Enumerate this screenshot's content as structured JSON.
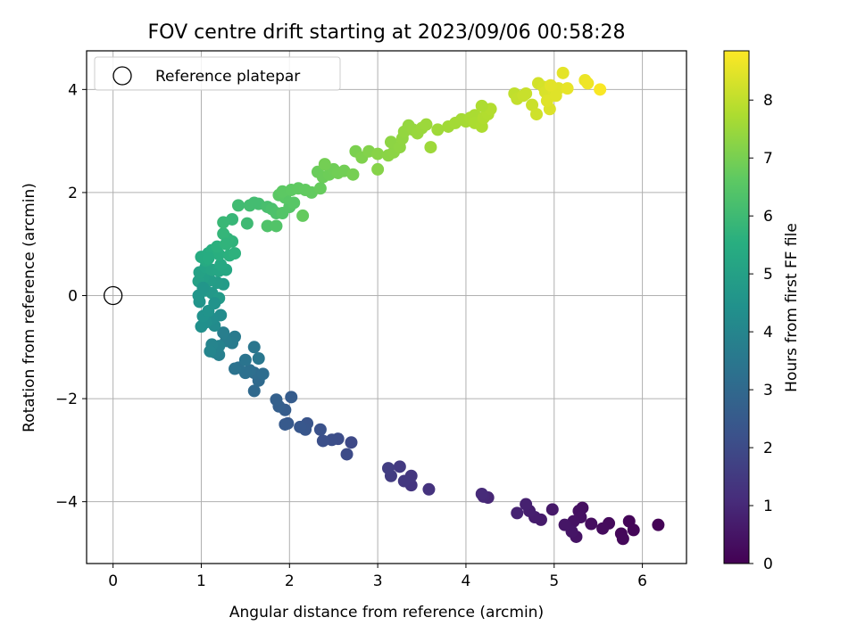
{
  "chart_data": {
    "type": "scatter",
    "title": "FOV centre drift starting at 2023/09/06 00:58:28",
    "xlabel": "Angular distance from reference (arcmin)",
    "ylabel": "Rotation from reference (arcmin)",
    "xlim": [
      -0.3,
      6.5
    ],
    "ylim": [
      -5.2,
      4.75
    ],
    "xticks": [
      0,
      1,
      2,
      3,
      4,
      5,
      6
    ],
    "xtick_labels": [
      "0",
      "1",
      "2",
      "3",
      "4",
      "5",
      "6"
    ],
    "yticks": [
      -4,
      -2,
      0,
      2,
      4
    ],
    "ytick_labels": [
      "−4",
      "−2",
      "0",
      "2",
      "4"
    ],
    "grid": true,
    "colormap": "viridis",
    "colorbar": {
      "label": "Hours from first FF file",
      "range": [
        0,
        8.85
      ],
      "ticks": [
        0,
        1,
        2,
        3,
        4,
        5,
        6,
        7,
        8
      ],
      "tick_labels": [
        "0",
        "1",
        "2",
        "3",
        "4",
        "5",
        "6",
        "7",
        "8"
      ]
    },
    "legend": {
      "location": "upper-left",
      "label": "Reference platepar",
      "marker": "open-circle"
    },
    "reference_point": {
      "x": 0,
      "y": 0
    },
    "points": [
      [
        6.18,
        -4.45,
        0.05
      ],
      [
        5.85,
        -4.38,
        0.1
      ],
      [
        5.9,
        -4.55,
        0.12
      ],
      [
        5.76,
        -4.62,
        0.15
      ],
      [
        5.78,
        -4.72,
        0.18
      ],
      [
        5.62,
        -4.42,
        0.22
      ],
      [
        5.55,
        -4.52,
        0.25
      ],
      [
        5.42,
        -4.43,
        0.3
      ],
      [
        5.32,
        -4.12,
        0.35
      ],
      [
        5.28,
        -4.18,
        0.38
      ],
      [
        5.3,
        -4.3,
        0.4
      ],
      [
        5.22,
        -4.38,
        0.42
      ],
      [
        5.25,
        -4.68,
        0.45
      ],
      [
        5.2,
        -4.58,
        0.5
      ],
      [
        5.12,
        -4.45,
        0.52
      ],
      [
        4.98,
        -4.15,
        0.6
      ],
      [
        4.85,
        -4.35,
        0.65
      ],
      [
        4.78,
        -4.3,
        0.7
      ],
      [
        4.72,
        -4.18,
        0.75
      ],
      [
        4.68,
        -4.05,
        0.8
      ],
      [
        4.58,
        -4.22,
        0.85
      ],
      [
        4.25,
        -3.92,
        0.95
      ],
      [
        4.2,
        -3.9,
        1.0
      ],
      [
        4.18,
        -3.85,
        1.05
      ],
      [
        3.58,
        -3.76,
        1.3
      ],
      [
        3.38,
        -3.68,
        1.35
      ],
      [
        3.38,
        -3.5,
        1.4
      ],
      [
        3.3,
        -3.6,
        1.45
      ],
      [
        3.25,
        -3.32,
        1.5
      ],
      [
        3.15,
        -3.5,
        1.55
      ],
      [
        3.12,
        -3.35,
        1.6
      ],
      [
        2.7,
        -2.85,
        1.95
      ],
      [
        2.65,
        -3.08,
        2.0
      ],
      [
        2.55,
        -2.78,
        2.05
      ],
      [
        2.48,
        -2.8,
        2.1
      ],
      [
        2.38,
        -2.82,
        2.15
      ],
      [
        2.35,
        -2.6,
        2.2
      ],
      [
        2.2,
        -2.48,
        2.3
      ],
      [
        2.18,
        -2.6,
        2.35
      ],
      [
        2.12,
        -2.55,
        2.4
      ],
      [
        1.98,
        -2.48,
        2.45
      ],
      [
        1.95,
        -2.5,
        2.5
      ],
      [
        2.02,
        -1.97,
        2.55
      ],
      [
        1.95,
        -2.22,
        2.6
      ],
      [
        1.88,
        -2.15,
        2.65
      ],
      [
        1.85,
        -2.02,
        2.7
      ],
      [
        1.6,
        -1.85,
        3.0
      ],
      [
        1.65,
        -1.65,
        3.05
      ],
      [
        1.6,
        -1.5,
        3.1
      ],
      [
        1.7,
        -1.52,
        3.15
      ],
      [
        1.55,
        -1.45,
        3.2
      ],
      [
        1.5,
        -1.5,
        3.25
      ],
      [
        1.42,
        -1.4,
        3.3
      ],
      [
        1.38,
        -1.42,
        3.35
      ],
      [
        1.5,
        -1.25,
        3.4
      ],
      [
        1.6,
        -1.0,
        3.45
      ],
      [
        1.65,
        -1.22,
        3.5
      ],
      [
        1.38,
        -0.8,
        3.6
      ],
      [
        1.35,
        -0.92,
        3.65
      ],
      [
        1.28,
        -0.88,
        3.7
      ],
      [
        1.25,
        -0.72,
        3.75
      ],
      [
        1.2,
        -1.15,
        3.8
      ],
      [
        1.15,
        -1.1,
        3.85
      ],
      [
        1.2,
        -0.98,
        3.9
      ],
      [
        1.12,
        -0.95,
        3.95
      ],
      [
        1.1,
        -1.08,
        4.0
      ],
      [
        1.15,
        -0.58,
        4.2
      ],
      [
        1.22,
        -0.38,
        4.25
      ],
      [
        1.12,
        -0.45,
        4.3
      ],
      [
        1.05,
        -0.52,
        4.35
      ],
      [
        1.0,
        -0.6,
        4.4
      ],
      [
        1.02,
        -0.4,
        4.45
      ],
      [
        1.08,
        -0.3,
        4.5
      ],
      [
        0.98,
        -0.12,
        4.55
      ],
      [
        0.97,
        0.0,
        4.6
      ],
      [
        1.05,
        0.1,
        4.65
      ],
      [
        1.12,
        0.05,
        4.7
      ],
      [
        1.2,
        -0.05,
        4.75
      ],
      [
        1.25,
        0.22,
        4.8
      ],
      [
        1.18,
        0.25,
        4.85
      ],
      [
        1.1,
        0.3,
        4.9
      ],
      [
        1.02,
        0.35,
        4.95
      ],
      [
        0.97,
        0.28,
        5.0
      ],
      [
        0.98,
        0.45,
        5.05
      ],
      [
        1.05,
        0.55,
        5.1
      ],
      [
        1.12,
        0.5,
        5.15
      ],
      [
        1.2,
        0.48,
        5.2
      ],
      [
        1.28,
        0.5,
        5.25
      ],
      [
        1.22,
        0.6,
        5.3
      ],
      [
        1.05,
        0.68,
        5.35
      ],
      [
        1.0,
        0.75,
        5.4
      ],
      [
        1.08,
        0.82,
        5.45
      ],
      [
        1.12,
        0.88,
        5.5
      ],
      [
        1.2,
        0.8,
        5.55
      ],
      [
        1.32,
        0.78,
        5.6
      ],
      [
        1.38,
        0.82,
        5.65
      ],
      [
        1.35,
        1.05,
        5.7
      ],
      [
        1.3,
        1.1,
        5.75
      ],
      [
        1.25,
        1.2,
        5.8
      ],
      [
        1.35,
        1.48,
        5.85
      ],
      [
        1.25,
        1.42,
        5.9
      ],
      [
        1.18,
        0.95,
        5.6
      ],
      [
        1.08,
        0.72,
        5.45
      ],
      [
        1.28,
        1.0,
        5.72
      ],
      [
        1.02,
        0.15,
        4.6
      ],
      [
        1.15,
        -0.15,
        4.5
      ],
      [
        1.42,
        1.75,
        6.05
      ],
      [
        1.55,
        1.75,
        6.1
      ],
      [
        1.65,
        1.78,
        6.15
      ],
      [
        1.75,
        1.72,
        6.2
      ],
      [
        1.8,
        1.68,
        6.25
      ],
      [
        1.85,
        1.6,
        6.3
      ],
      [
        1.75,
        1.35,
        6.35
      ],
      [
        1.85,
        1.35,
        6.4
      ],
      [
        1.92,
        1.6,
        6.42
      ],
      [
        2.0,
        1.72,
        6.45
      ],
      [
        2.05,
        1.8,
        6.5
      ],
      [
        1.95,
        1.9,
        6.52
      ],
      [
        1.88,
        1.95,
        6.55
      ],
      [
        1.92,
        2.02,
        6.6
      ],
      [
        2.02,
        2.05,
        6.62
      ],
      [
        2.1,
        2.08,
        6.65
      ],
      [
        2.18,
        2.05,
        6.68
      ],
      [
        2.25,
        2.0,
        6.7
      ],
      [
        2.15,
        1.55,
        6.72
      ],
      [
        1.6,
        1.8,
        6.1
      ],
      [
        1.52,
        1.4,
        6.0
      ],
      [
        2.32,
        2.4,
        6.8
      ],
      [
        2.38,
        2.3,
        6.82
      ],
      [
        2.45,
        2.35,
        6.85
      ],
      [
        2.5,
        2.45,
        6.88
      ],
      [
        2.55,
        2.38,
        6.9
      ],
      [
        2.62,
        2.42,
        6.92
      ],
      [
        2.4,
        2.55,
        6.95
      ],
      [
        2.35,
        2.08,
        6.75
      ],
      [
        2.72,
        2.35,
        6.98
      ],
      [
        2.75,
        2.8,
        7.05
      ],
      [
        2.82,
        2.68,
        7.1
      ],
      [
        2.9,
        2.8,
        7.15
      ],
      [
        3.0,
        2.45,
        7.2
      ],
      [
        3.0,
        2.75,
        7.22
      ],
      [
        3.12,
        2.72,
        7.25
      ],
      [
        3.18,
        2.78,
        7.28
      ],
      [
        3.15,
        2.98,
        7.3
      ],
      [
        3.25,
        2.88,
        7.32
      ],
      [
        3.28,
        3.05,
        7.35
      ],
      [
        3.3,
        3.18,
        7.38
      ],
      [
        3.35,
        3.3,
        7.4
      ],
      [
        3.4,
        3.22,
        7.42
      ],
      [
        3.45,
        3.15,
        7.45
      ],
      [
        3.5,
        3.25,
        7.48
      ],
      [
        3.55,
        3.32,
        7.5
      ],
      [
        3.6,
        2.88,
        7.52
      ],
      [
        3.68,
        3.22,
        7.55
      ],
      [
        3.8,
        3.28,
        7.58
      ],
      [
        3.88,
        3.35,
        7.6
      ],
      [
        3.95,
        3.42,
        7.62
      ],
      [
        4.0,
        3.38,
        7.65
      ],
      [
        4.05,
        3.45,
        7.68
      ],
      [
        4.1,
        3.5,
        7.7
      ],
      [
        4.1,
        3.35,
        7.72
      ],
      [
        4.18,
        3.28,
        7.75
      ],
      [
        4.2,
        3.45,
        7.78
      ],
      [
        4.25,
        3.52,
        7.8
      ],
      [
        4.28,
        3.62,
        7.82
      ],
      [
        4.18,
        3.68,
        7.75
      ],
      [
        4.55,
        3.92,
        8.0
      ],
      [
        4.58,
        3.82,
        8.05
      ],
      [
        4.65,
        3.88,
        8.1
      ],
      [
        4.75,
        3.7,
        8.15
      ],
      [
        4.8,
        3.52,
        8.2
      ],
      [
        4.82,
        4.12,
        8.25
      ],
      [
        4.88,
        4.05,
        8.3
      ],
      [
        4.9,
        3.95,
        8.35
      ],
      [
        4.95,
        3.62,
        8.38
      ],
      [
        5.0,
        3.95,
        8.4
      ],
      [
        5.05,
        4.02,
        8.45
      ],
      [
        5.1,
        4.32,
        8.5
      ],
      [
        5.15,
        4.02,
        8.55
      ],
      [
        4.92,
        3.78,
        8.42
      ],
      [
        5.35,
        4.18,
        8.6
      ],
      [
        5.38,
        4.12,
        8.65
      ],
      [
        5.52,
        4.0,
        8.8
      ],
      [
        4.68,
        3.92,
        8.12
      ],
      [
        5.02,
        3.88,
        8.43
      ],
      [
        4.96,
        4.08,
        8.48
      ]
    ]
  }
}
